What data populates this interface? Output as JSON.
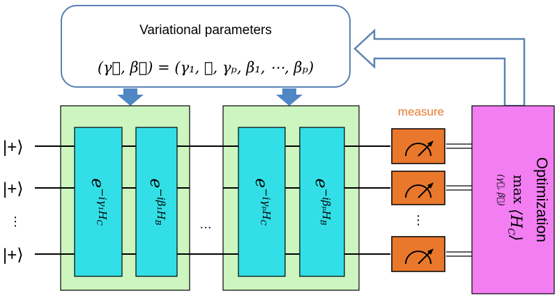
{
  "params_box": {
    "title": "Variational parameters",
    "lhs": "(γ⃗, β⃗)",
    "rhs": "= (γ₁, ⋯, γₚ, β₁, ⋯, βₚ)"
  },
  "inputs": {
    "state": "|+⟩",
    "ellipsis": "⋮"
  },
  "layers": {
    "gate_cost_1": {
      "base": "e",
      "exp": "−iγ₁H",
      "sub": "C"
    },
    "gate_mixer_1": {
      "base": "e",
      "exp": "−iβ₁H",
      "sub": "B"
    },
    "between_ellipsis": "…",
    "gate_cost_p": {
      "base": "e",
      "exp": "−iγₚH",
      "sub": "C"
    },
    "gate_mixer_p": {
      "base": "e",
      "exp": "−iβₚH",
      "sub": "B"
    }
  },
  "measure": {
    "label": "measure",
    "ellipsis": "⋮"
  },
  "optimization": {
    "title": "Optimization",
    "max": "max",
    "max_sub": "(γ⃗, β⃗)",
    "expectation": "⟨H",
    "expectation_sub": "C",
    "expectation_close": "⟩"
  },
  "colors": {
    "layer_bg": "#ccf5c0",
    "gate_fill": "#33dfe6",
    "meter_fill": "#e9782c",
    "measure_text": "#e9782c",
    "optim_fill": "#f27ef2",
    "arrow_blue": "#4f86c4",
    "box_stroke": "#5a82b4"
  }
}
